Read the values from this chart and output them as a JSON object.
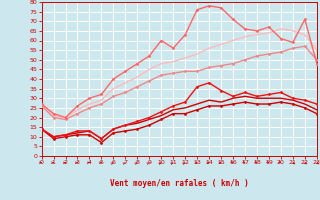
{
  "background_color": "#cce8ee",
  "grid_color": "#ffffff",
  "xlabel": "Vent moyen/en rafales ( km/h )",
  "xlabel_color": "#cc0000",
  "tick_color": "#cc0000",
  "ylim": [
    0,
    80
  ],
  "xlim": [
    0,
    23
  ],
  "yticks": [
    0,
    5,
    10,
    15,
    20,
    25,
    30,
    35,
    40,
    45,
    50,
    55,
    60,
    65,
    70,
    75,
    80
  ],
  "xticks": [
    0,
    1,
    2,
    3,
    4,
    5,
    6,
    7,
    8,
    9,
    10,
    11,
    12,
    13,
    14,
    15,
    16,
    17,
    18,
    19,
    20,
    21,
    22,
    23
  ],
  "lines": [
    {
      "x": [
        0,
        1,
        2,
        3,
        4,
        5,
        6,
        7,
        8,
        9,
        10,
        11,
        12,
        13,
        14,
        15,
        16,
        17,
        18,
        19,
        20,
        21,
        22,
        23
      ],
      "y": [
        14,
        9,
        10,
        11,
        11,
        7,
        12,
        13,
        14,
        16,
        19,
        22,
        22,
        24,
        26,
        26,
        27,
        28,
        27,
        27,
        28,
        27,
        25,
        22
      ],
      "color": "#cc0000",
      "lw": 1.0,
      "marker": "D",
      "ms": 1.5
    },
    {
      "x": [
        0,
        1,
        2,
        3,
        4,
        5,
        6,
        7,
        8,
        9,
        10,
        11,
        12,
        13,
        14,
        15,
        16,
        17,
        18,
        19,
        20,
        21,
        22,
        23
      ],
      "y": [
        14,
        10,
        11,
        12,
        13,
        9,
        14,
        16,
        17,
        19,
        21,
        24,
        25,
        27,
        29,
        28,
        30,
        31,
        30,
        30,
        30,
        29,
        27,
        24
      ],
      "color": "#cc0000",
      "lw": 1.0,
      "marker": null,
      "ms": 0
    },
    {
      "x": [
        0,
        1,
        2,
        3,
        4,
        5,
        6,
        7,
        8,
        9,
        10,
        11,
        12,
        13,
        14,
        15,
        16,
        17,
        18,
        19,
        20,
        21,
        22,
        23
      ],
      "y": [
        14,
        10,
        11,
        13,
        13,
        9,
        14,
        16,
        18,
        20,
        23,
        26,
        28,
        36,
        38,
        34,
        31,
        33,
        31,
        32,
        33,
        30,
        29,
        27
      ],
      "color": "#ee1111",
      "lw": 1.0,
      "marker": "D",
      "ms": 1.5
    },
    {
      "x": [
        0,
        1,
        2,
        3,
        4,
        5,
        6,
        7,
        8,
        9,
        10,
        11,
        12,
        13,
        14,
        15,
        16,
        17,
        18,
        19,
        20,
        21,
        22,
        23
      ],
      "y": [
        26,
        20,
        19,
        22,
        25,
        27,
        31,
        33,
        36,
        39,
        42,
        43,
        44,
        44,
        46,
        47,
        48,
        50,
        52,
        53,
        54,
        56,
        57,
        50
      ],
      "color": "#ee8888",
      "lw": 1.0,
      "marker": "D",
      "ms": 1.5
    },
    {
      "x": [
        0,
        1,
        2,
        3,
        4,
        5,
        6,
        7,
        8,
        9,
        10,
        11,
        12,
        13,
        14,
        15,
        16,
        17,
        18,
        19,
        20,
        21,
        22,
        23
      ],
      "y": [
        27,
        21,
        20,
        24,
        27,
        29,
        35,
        38,
        41,
        45,
        48,
        49,
        51,
        53,
        56,
        58,
        60,
        62,
        63,
        64,
        66,
        65,
        63,
        55
      ],
      "color": "#ffbbbb",
      "lw": 1.0,
      "marker": null,
      "ms": 0
    },
    {
      "x": [
        0,
        1,
        2,
        3,
        4,
        5,
        6,
        7,
        8,
        9,
        10,
        11,
        12,
        13,
        14,
        15,
        16,
        17,
        18,
        19,
        20,
        21,
        22,
        23
      ],
      "y": [
        27,
        22,
        20,
        26,
        30,
        32,
        40,
        44,
        48,
        52,
        60,
        56,
        63,
        76,
        78,
        77,
        71,
        66,
        65,
        67,
        61,
        59,
        71,
        48
      ],
      "color": "#ff6666",
      "lw": 1.0,
      "marker": "D",
      "ms": 1.5
    }
  ],
  "arrow_angles": [
    90,
    90,
    90,
    90,
    90,
    90,
    60,
    60,
    60,
    60,
    60,
    60,
    60,
    90,
    90,
    90,
    120,
    120,
    120,
    120,
    120,
    135,
    135,
    135
  ]
}
